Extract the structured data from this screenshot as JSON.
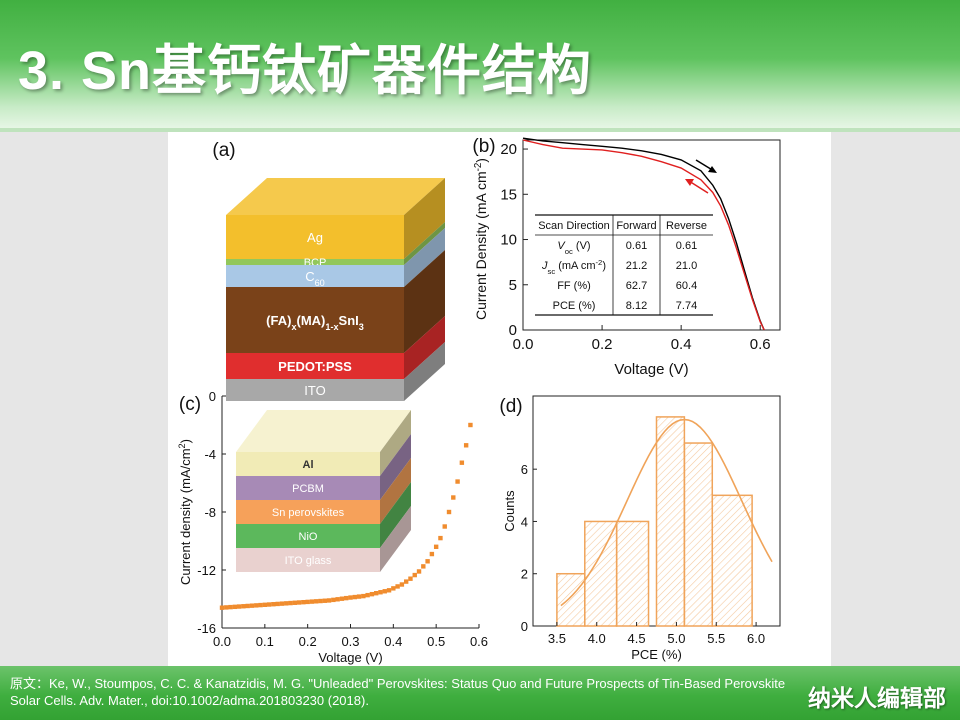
{
  "slide": {
    "title": "3. Sn基钙钛矿器件结构",
    "citation": "原文：Ke, W., Stoumpos, C. C. & Kanatzidis, M. G. \"Unleaded\" Perovskites: Status Quo and Future Prospects of Tin-Based Perovskite Solar Cells. Adv. Mater., doi:10.1002/adma.201803230 (2018).",
    "brand": "纳米人编辑部"
  },
  "colors": {
    "header_green": "#4cb84c",
    "black_curve": "#000000",
    "red_curve": "#e02020",
    "orange": "#f08c2e"
  },
  "panels": {
    "a": {
      "label": "(a)",
      "layers": [
        {
          "name": "Ag",
          "color": "#f3bf2c"
        },
        {
          "name": "BCP",
          "color": "#92c75b"
        },
        {
          "name": "C60",
          "color": "#a9c8e6"
        },
        {
          "name": "(FA)x(MA)1-xSnI3",
          "color": "#7a4219"
        },
        {
          "name": "PEDOT:PSS",
          "color": "#e02e2e"
        },
        {
          "name": "ITO",
          "color": "#a8a8a8"
        }
      ]
    },
    "c_stack": {
      "layers": [
        {
          "name": "Al",
          "color": "#f1ebb6"
        },
        {
          "name": "PCBM",
          "color": "#a78ab6"
        },
        {
          "name": "Sn perovskites",
          "color": "#f6a15a"
        },
        {
          "name": "NiO",
          "color": "#5cb85c"
        },
        {
          "name": "ITO glass",
          "color": "#e9d1cf"
        }
      ]
    }
  },
  "chart_data": [
    {
      "panel": "(b)",
      "type": "line",
      "xlabel": "Voltage (V)",
      "ylabel": "Current Density (mA cm-2)",
      "xlim": [
        0,
        0.65
      ],
      "ylim": [
        0,
        21
      ],
      "xticks": [
        "0.0",
        "0.2",
        "0.4",
        "0.6"
      ],
      "yticks": [
        "0",
        "5",
        "10",
        "15",
        "20"
      ],
      "series": [
        {
          "color": "#000000",
          "x": [
            0,
            0.05,
            0.1,
            0.15,
            0.2,
            0.25,
            0.3,
            0.35,
            0.4,
            0.45,
            0.48,
            0.5,
            0.52,
            0.54,
            0.56,
            0.58,
            0.6,
            0.61
          ],
          "y": [
            21.2,
            20.9,
            20.7,
            20.5,
            20.3,
            20.1,
            19.8,
            19.4,
            18.8,
            17.6,
            16.0,
            14.5,
            12.3,
            9.6,
            6.6,
            3.6,
            1.0,
            0
          ]
        },
        {
          "color": "#e02020",
          "x": [
            0,
            0.05,
            0.1,
            0.15,
            0.2,
            0.25,
            0.3,
            0.35,
            0.4,
            0.45,
            0.48,
            0.5,
            0.52,
            0.54,
            0.56,
            0.58,
            0.6,
            0.61
          ],
          "y": [
            21.0,
            20.5,
            20.1,
            20.0,
            19.9,
            19.6,
            19.2,
            18.6,
            17.9,
            16.6,
            15.2,
            13.7,
            11.6,
            9.0,
            6.2,
            3.4,
            0.9,
            0
          ]
        }
      ],
      "table": {
        "header": [
          "Scan Direction",
          "Forward",
          "Reverse"
        ],
        "rows": [
          [
            "Voc (V)",
            "0.61",
            "0.61"
          ],
          [
            "Jsc (mA cm-2)",
            "21.2",
            "21.0"
          ],
          [
            "FF (%)",
            "62.7",
            "60.4"
          ],
          [
            "PCE (%)",
            "8.12",
            "7.74"
          ]
        ]
      }
    },
    {
      "panel": "(c)",
      "type": "scatter",
      "xlabel": "Voltage (V)",
      "ylabel": "Current density (mA/cm2)",
      "xlim": [
        0,
        0.6
      ],
      "ylim": [
        -16,
        0
      ],
      "xticks": [
        "0.0",
        "0.1",
        "0.2",
        "0.3",
        "0.4",
        "0.5",
        "0.6"
      ],
      "yticks": [
        "0",
        "-4",
        "-8",
        "-12",
        "-16"
      ],
      "color": "#f08c2e",
      "x": [
        0,
        0.05,
        0.1,
        0.15,
        0.2,
        0.25,
        0.3,
        0.33,
        0.36,
        0.39,
        0.42,
        0.44,
        0.46,
        0.48,
        0.5,
        0.51,
        0.52,
        0.53,
        0.54,
        0.55,
        0.56,
        0.57,
        0.58,
        0.59
      ],
      "y": [
        -14.6,
        -14.5,
        -14.4,
        -14.3,
        -14.2,
        -14.1,
        -13.9,
        -13.8,
        -13.6,
        -13.4,
        -13.0,
        -12.6,
        -12.1,
        -11.4,
        -10.4,
        -9.8,
        -9.0,
        -8.0,
        -7.0,
        -5.9,
        -4.6,
        -3.4,
        -2.0,
        -0.9
      ]
    },
    {
      "panel": "(d)",
      "type": "bar",
      "xlabel": "PCE (%)",
      "ylabel": "Counts",
      "xlim": [
        3.2,
        6.3
      ],
      "ylim": [
        0,
        8.8
      ],
      "xticks": [
        "3.5",
        "4.0",
        "4.5",
        "5.0",
        "5.5",
        "6.0"
      ],
      "yticks": [
        "0",
        "2",
        "4",
        "6"
      ],
      "bins": [
        [
          3.5,
          3.85
        ],
        [
          3.85,
          4.25
        ],
        [
          4.25,
          4.65
        ],
        [
          4.75,
          5.1
        ],
        [
          5.1,
          5.45
        ],
        [
          5.45,
          5.95
        ]
      ],
      "values": [
        2,
        4,
        4,
        8,
        7,
        5
      ],
      "fit_mean": 5.1,
      "fit_sigma": 0.72,
      "fit_peak": 7.9,
      "color": "#f0a45a"
    }
  ]
}
